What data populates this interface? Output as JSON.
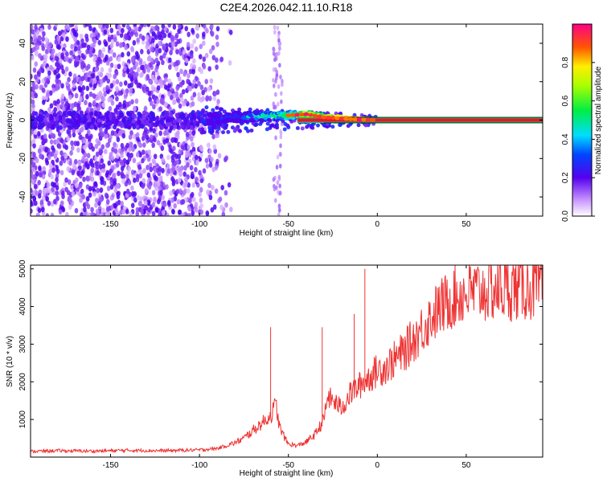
{
  "figure_title": "C2E4.2026.042.11.10.R18",
  "chart_data": [
    {
      "type": "heatmap",
      "title": "C2E4.2026.042.11.10.R18",
      "xlabel": "Height of straight line (km)",
      "ylabel": "Frequency (Hz)",
      "xlim": [
        -195,
        93
      ],
      "ylim": [
        -50,
        50
      ],
      "xticks": [
        -150,
        -100,
        -50,
        0,
        50
      ],
      "yticks": [
        -40,
        -20,
        0,
        20,
        40
      ],
      "xtick_labels": [
        "-150",
        "-100",
        "-50",
        "0",
        "50"
      ],
      "ytick_labels": [
        "-40",
        "-20",
        "0",
        "20",
        "40"
      ],
      "colorbar": {
        "label": "Normalized spectral amplitude",
        "range": [
          0,
          1
        ],
        "ticks": [
          0.0,
          0.2,
          0.4,
          0.6,
          0.8
        ],
        "tick_labels": [
          "0.0",
          "0.2",
          "0.4",
          "0.6",
          "0.8"
        ]
      },
      "features": {
        "noise_region_x": [
          -195,
          -85
        ],
        "spike_column_x": -56,
        "signal_line_frequency_hz": 0,
        "signal_ridge": [
          {
            "x": -95,
            "f": 0.5,
            "amp": 0.3
          },
          {
            "x": -80,
            "f": 1.5,
            "amp": 0.45
          },
          {
            "x": -65,
            "f": 2.0,
            "amp": 0.55
          },
          {
            "x": -50,
            "f": 2.5,
            "amp": 0.7
          },
          {
            "x": -40,
            "f": 3.0,
            "amp": 0.85
          },
          {
            "x": -30,
            "f": 1.5,
            "amp": 0.9
          },
          {
            "x": -15,
            "f": 0.5,
            "amp": 0.95
          },
          {
            "x": 0,
            "f": 0,
            "amp": 1.0
          },
          {
            "x": 93,
            "f": 0,
            "amp": 1.0
          }
        ]
      }
    },
    {
      "type": "line",
      "xlabel": "Height of straight line (km)",
      "ylabel": "SNR (10 * v/v)",
      "xlim": [
        -195,
        93
      ],
      "ylim": [
        0,
        5100
      ],
      "xticks": [
        -150,
        -100,
        -50,
        0,
        50
      ],
      "yticks": [
        1000,
        2000,
        3000,
        4000,
        5000
      ],
      "xtick_labels": [
        "-150",
        "-100",
        "-50",
        "0",
        "50"
      ],
      "ytick_labels": [
        "1000",
        "2000",
        "3000",
        "4000",
        "5000"
      ],
      "color": "#ee3333",
      "series": [
        {
          "name": "SNR",
          "x": [
            -195,
            -180,
            -160,
            -140,
            -120,
            -100,
            -90,
            -80,
            -75,
            -70,
            -65,
            -60,
            -57,
            -55,
            -52,
            -50,
            -45,
            -40,
            -35,
            -30,
            -28,
            -25,
            -20,
            -15,
            -10,
            -5,
            0,
            5,
            10,
            15,
            20,
            25,
            30,
            35,
            40,
            45,
            50,
            55,
            60,
            65,
            70,
            75,
            80,
            85,
            93
          ],
          "y": [
            150,
            170,
            160,
            180,
            170,
            190,
            230,
            380,
            500,
            700,
            900,
            1100,
            1400,
            800,
            500,
            350,
            300,
            400,
            600,
            1000,
            1600,
            1500,
            1300,
            1700,
            1900,
            2100,
            2300,
            2400,
            2600,
            2800,
            3100,
            3400,
            3700,
            3950,
            4150,
            4300,
            4350,
            4400,
            4420,
            4450,
            4470,
            4480,
            4500,
            4500,
            4500
          ],
          "spikes": [
            {
              "x": -60,
              "y": 3450
            },
            {
              "x": -31,
              "y": 3450
            },
            {
              "x": -13,
              "y": 3800
            },
            {
              "x": -7,
              "y": 5000
            }
          ]
        }
      ]
    }
  ]
}
